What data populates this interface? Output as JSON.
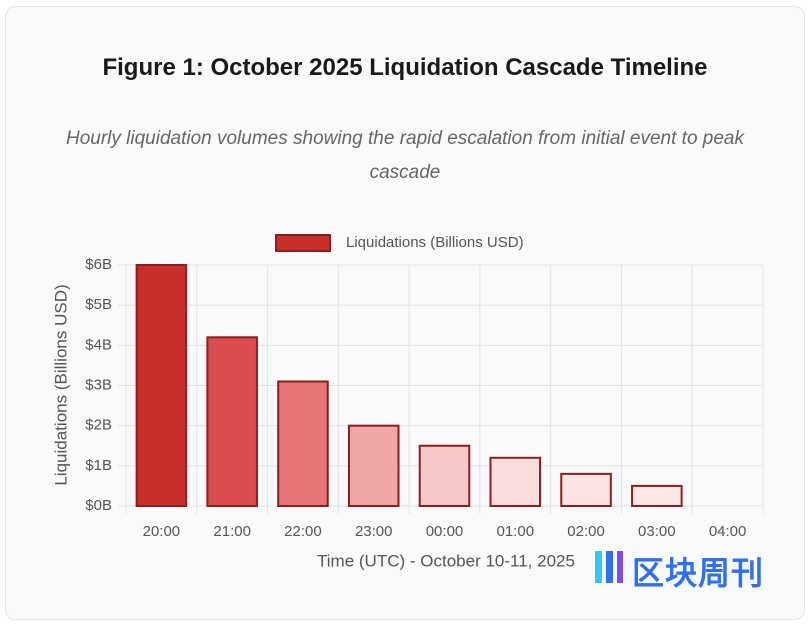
{
  "chart_data": {
    "type": "bar",
    "title": "Figure 1: October 2025 Liquidation Cascade Timeline",
    "subtitle": "Hourly liquidation volumes showing the rapid escalation from initial event to peak cascade",
    "legend": "Liquidations (Billions USD)",
    "x_label": "Time (UTC) - October 10-11, 2025",
    "y_label": "Liquidations (Billions USD)",
    "categories": [
      "20:00",
      "21:00",
      "22:00",
      "23:00",
      "00:00",
      "01:00",
      "02:00",
      "03:00",
      "04:00"
    ],
    "values": [
      6,
      4.2,
      3.1,
      2,
      1.5,
      1.2,
      0.8,
      0.5,
      0
    ],
    "colors": [
      "#c9302c",
      "#dc4c4c",
      "#e57373",
      "#efa5a5",
      "#f6c8c8",
      "#fadcdc",
      "#fce3e3",
      "#fde8e8",
      "#fdeeee"
    ],
    "border_color": "#8b1e1e",
    "ylim": [
      0,
      6
    ],
    "yticks": [
      {
        "value": 0,
        "label": "$0B"
      },
      {
        "value": 1,
        "label": "$1B"
      },
      {
        "value": 2,
        "label": "$2B"
      },
      {
        "value": 3,
        "label": "$3B"
      },
      {
        "value": 4,
        "label": "$4B"
      },
      {
        "value": 5,
        "label": "$5B"
      },
      {
        "value": 6,
        "label": "$6B"
      }
    ],
    "grid": true
  },
  "watermark": "区块周刊"
}
